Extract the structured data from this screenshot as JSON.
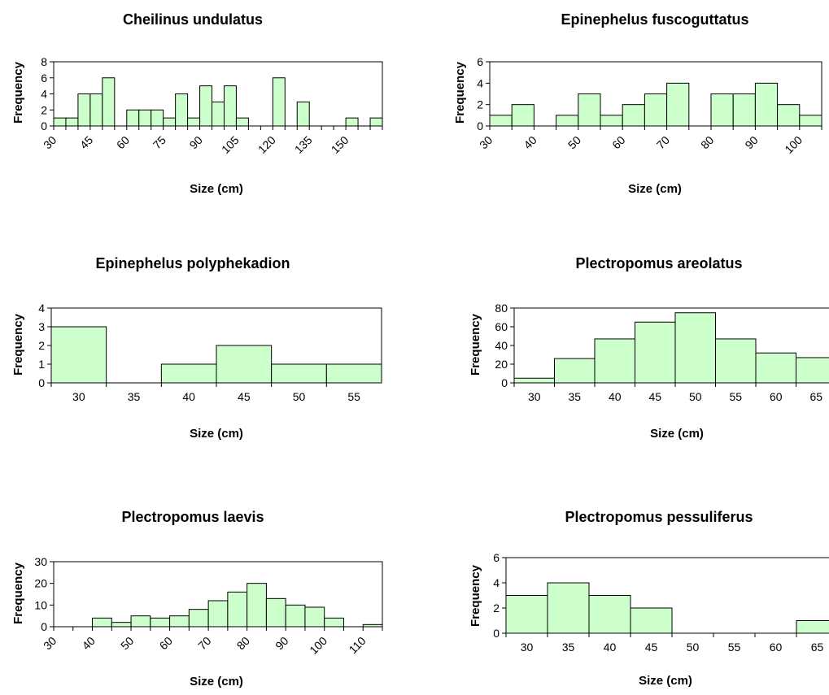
{
  "chart_data": [
    {
      "type": "bar",
      "title": "Cheilinus undulatus",
      "xlabel": "Size (cm)",
      "ylabel": "Frequency",
      "ylim": [
        0,
        8
      ],
      "yticks": [
        0,
        2,
        4,
        6,
        8
      ],
      "bin_start": 30,
      "bin_width": 5,
      "xtick_labels": [
        "30",
        "45",
        "60",
        "75",
        "90",
        "105",
        "120",
        "135",
        "150"
      ],
      "xtick_rotated": true,
      "grid": false,
      "bar_color": "#ccffcc",
      "values": [
        1,
        1,
        4,
        4,
        6,
        0,
        2,
        2,
        2,
        1,
        4,
        1,
        5,
        3,
        5,
        1,
        0,
        0,
        6,
        0,
        3,
        0,
        0,
        0,
        1,
        0,
        1
      ]
    },
    {
      "type": "bar",
      "title": "Epinephelus fuscoguttatus",
      "xlabel": "Size (cm)",
      "ylabel": "Frequency",
      "ylim": [
        0,
        6
      ],
      "yticks": [
        0,
        2,
        4,
        6
      ],
      "bin_start": 30,
      "bin_width": 5,
      "xtick_labels": [
        "30",
        "40",
        "50",
        "60",
        "70",
        "80",
        "90",
        "100"
      ],
      "xtick_rotated": true,
      "grid": false,
      "bar_color": "#ccffcc",
      "values": [
        1,
        2,
        0,
        1,
        3,
        1,
        2,
        3,
        4,
        0,
        3,
        3,
        4,
        2,
        1
      ]
    },
    {
      "type": "bar",
      "title": "Epinephelus polyphekadion",
      "xlabel": "Size (cm)",
      "ylabel": "Frequency",
      "ylim": [
        0,
        4
      ],
      "yticks": [
        0,
        1,
        2,
        3,
        4
      ],
      "categories": [
        "30",
        "35",
        "40",
        "45",
        "50",
        "55"
      ],
      "xtick_rotated": false,
      "grid": false,
      "bar_color": "#ccffcc",
      "values": [
        3,
        0,
        1,
        2,
        1,
        1
      ]
    },
    {
      "type": "bar",
      "title": "Plectropomus areolatus",
      "xlabel": "Size (cm)",
      "ylabel": "Frequency",
      "ylim": [
        0,
        80
      ],
      "yticks": [
        0,
        20,
        40,
        60,
        80
      ],
      "categories": [
        "30",
        "35",
        "40",
        "45",
        "50",
        "55",
        "60",
        "65"
      ],
      "xtick_rotated": false,
      "grid": false,
      "bar_color": "#ccffcc",
      "values": [
        5,
        26,
        47,
        65,
        75,
        47,
        32,
        27
      ]
    },
    {
      "type": "bar",
      "title": "Plectropomus laevis",
      "xlabel": "Size (cm)",
      "ylabel": "Frequency",
      "ylim": [
        0,
        30
      ],
      "yticks": [
        0,
        10,
        20,
        30
      ],
      "bin_start": 30,
      "bin_width": 5,
      "xtick_labels": [
        "30",
        "40",
        "50",
        "60",
        "70",
        "80",
        "90",
        "100",
        "110"
      ],
      "xtick_rotated": true,
      "grid": false,
      "bar_color": "#ccffcc",
      "values": [
        0,
        0,
        4,
        2,
        5,
        4,
        5,
        8,
        12,
        16,
        20,
        13,
        10,
        9,
        4,
        0,
        1
      ]
    },
    {
      "type": "bar",
      "title": "Plectropomus pessuliferus",
      "xlabel": "Size (cm)",
      "ylabel": "Frequency",
      "ylim": [
        0,
        6
      ],
      "yticks": [
        0,
        2,
        4,
        6
      ],
      "categories": [
        "30",
        "35",
        "40",
        "45",
        "50",
        "55",
        "60",
        "65"
      ],
      "xtick_rotated": false,
      "grid": false,
      "bar_color": "#ccffcc",
      "values": [
        3,
        4,
        3,
        2,
        0,
        0,
        0,
        1
      ]
    }
  ]
}
